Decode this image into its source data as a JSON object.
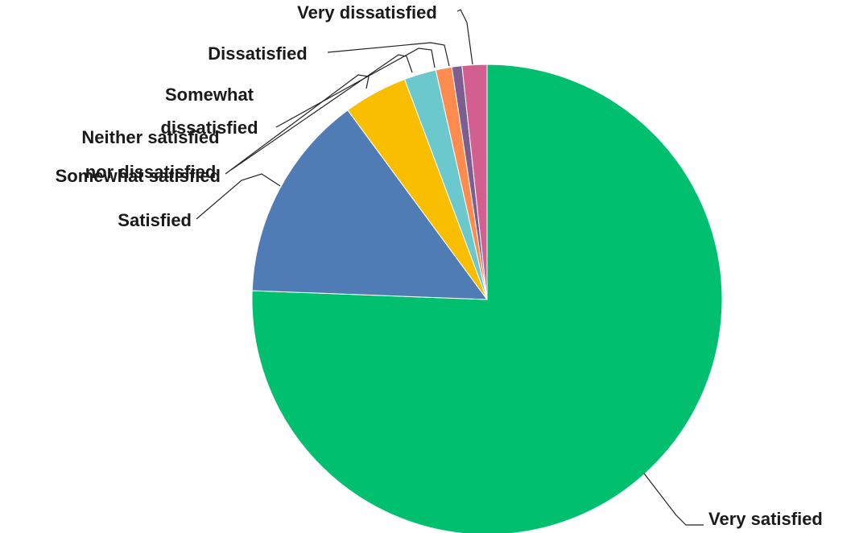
{
  "chart_data": {
    "type": "pie",
    "title": "",
    "slices": [
      {
        "label": "Very satisfied",
        "value": 75.6,
        "color": "#00BF6F"
      },
      {
        "label": "Satisfied",
        "value": 14.3,
        "color": "#507CB6"
      },
      {
        "label": "Somewhat satisfied",
        "value": 4.4,
        "color": "#F9BE00"
      },
      {
        "label": "Neither satisfied nor dissatisfied",
        "value": 2.2,
        "color": "#6BC8CD"
      },
      {
        "label": "Somewhat dissatisfied",
        "value": 1.1,
        "color": "#FF8B4F"
      },
      {
        "label": "Dissatisfied",
        "value": 0.7,
        "color": "#7D5E90"
      },
      {
        "label": "Very dissatisfied",
        "value": 1.7,
        "color": "#D25F90"
      }
    ],
    "start_angle_deg": 0,
    "direction": "clockwise",
    "legend": "none"
  }
}
